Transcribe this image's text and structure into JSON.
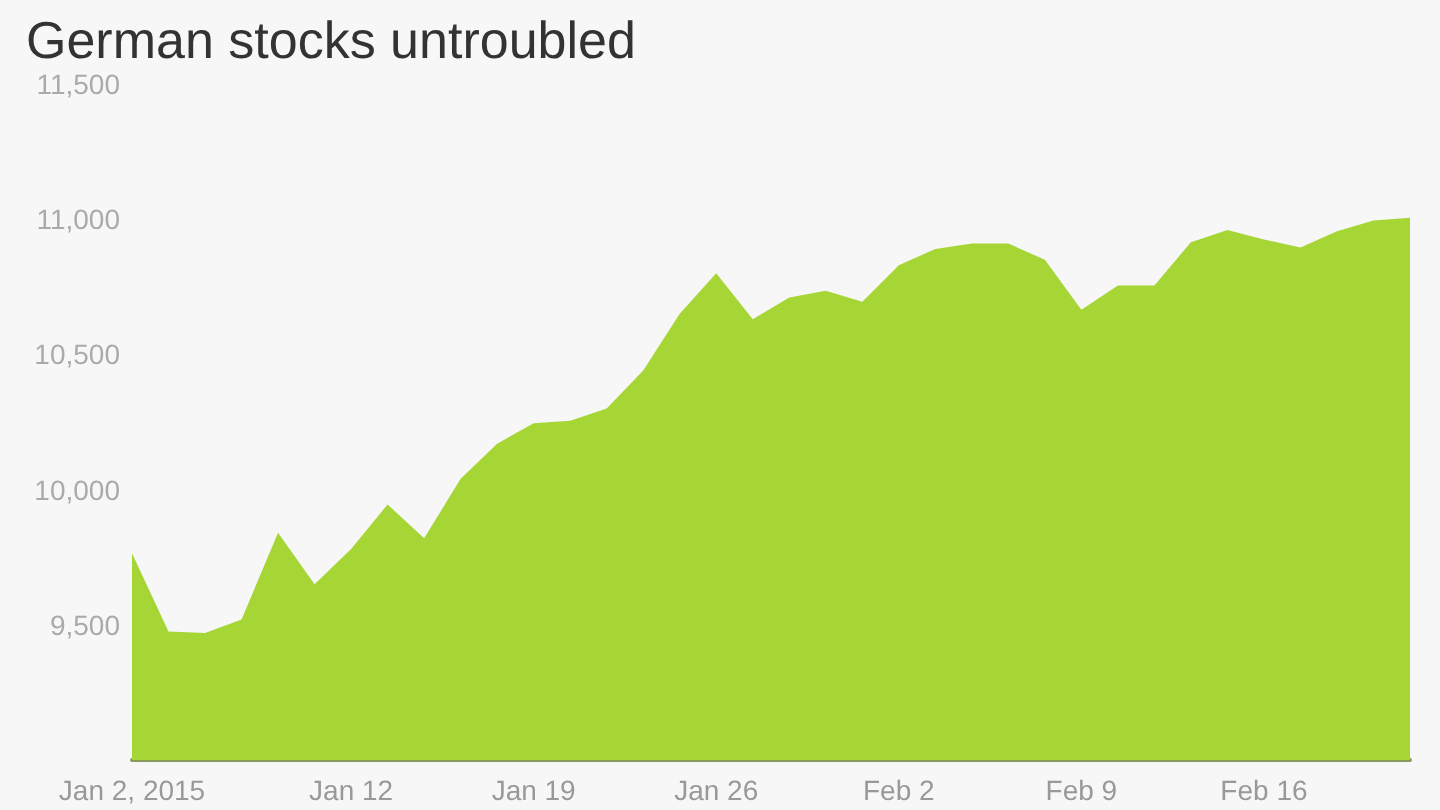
{
  "chart_data": {
    "type": "area",
    "title": "German stocks untroubled",
    "categories": [
      "Jan 2, 2015",
      null,
      null,
      null,
      null,
      null,
      "Jan 12",
      null,
      null,
      null,
      null,
      "Jan 19",
      null,
      null,
      null,
      null,
      "Jan 26",
      null,
      null,
      null,
      null,
      "Feb 2",
      null,
      null,
      null,
      null,
      "Feb 9",
      null,
      null,
      null,
      null,
      "Feb 16",
      null,
      null,
      null,
      null
    ],
    "values": [
      9765,
      9475,
      9470,
      9520,
      9840,
      9650,
      9780,
      9945,
      9820,
      10040,
      10170,
      10245,
      10255,
      10300,
      10440,
      10650,
      10800,
      10630,
      10710,
      10735,
      10695,
      10830,
      10890,
      10910,
      10910,
      10850,
      10665,
      10755,
      10755,
      10915,
      10960,
      10925,
      10895,
      10955,
      10995,
      11005
    ],
    "color": "#a6d636",
    "ylim": [
      9000,
      11500
    ],
    "yticks": [
      {
        "value": 9500,
        "label": "9,500"
      },
      {
        "value": 10000,
        "label": "10,000"
      },
      {
        "value": 10500,
        "label": "10,500"
      },
      {
        "value": 11000,
        "label": "11,000"
      },
      {
        "value": 11500,
        "label": "11,500"
      }
    ],
    "grid": false
  }
}
